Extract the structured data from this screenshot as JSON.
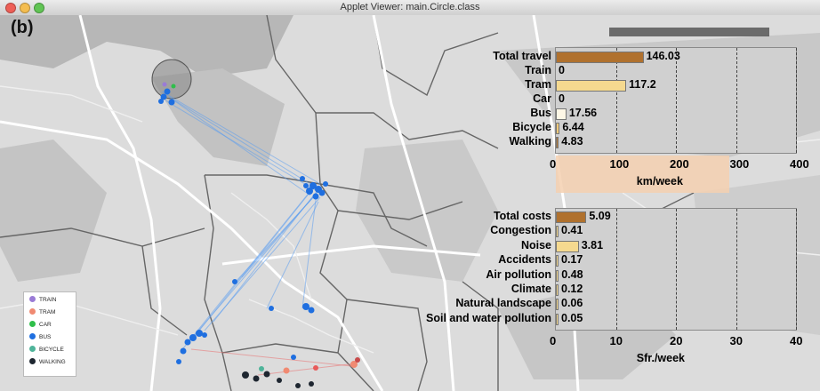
{
  "window": {
    "title": "Applet Viewer: main.Circle.class"
  },
  "panel_label": "(b)",
  "legend": [
    {
      "label": "TRAIN",
      "color": "#9a7bd6"
    },
    {
      "label": "TRAM",
      "color": "#f08a72"
    },
    {
      "label": "CAR",
      "color": "#2fbf4a"
    },
    {
      "label": "BUS",
      "color": "#1f6fe0"
    },
    {
      "label": "BICYCLE",
      "color": "#4fb49a"
    },
    {
      "label": "WALKING",
      "color": "#1e2630"
    }
  ],
  "chart_data": [
    {
      "type": "bar",
      "categories": [
        "Total travel",
        "Train",
        "Tram",
        "Car",
        "Bus",
        "Bicycle",
        "Walking"
      ],
      "values": [
        146.03,
        0,
        117.2,
        0,
        17.56,
        6.44,
        4.83
      ],
      "value_labels": [
        "146.03",
        "0",
        "117.2",
        "0",
        "17.56",
        "6.44",
        "4.83"
      ],
      "colors": [
        "#b0712e",
        "#f5d98f",
        "#f5d98f",
        "#f5d98f",
        "#fdf7e6",
        "#f0c97a",
        "#b07a3a"
      ],
      "xlim": [
        0,
        400
      ],
      "xticks": [
        "0",
        "100",
        "200",
        "300",
        "400"
      ],
      "xlabel": "km/week"
    },
    {
      "type": "bar",
      "categories": [
        "Total costs",
        "Congestion",
        "Noise",
        "Accidents",
        "Air pollution",
        "Climate",
        "Natural landscape",
        "Soil and water pollution"
      ],
      "values": [
        5.09,
        0.41,
        3.81,
        0.17,
        0.48,
        0.12,
        0.06,
        0.05
      ],
      "value_labels": [
        "5.09",
        "0.41",
        "3.81",
        "0.17",
        "0.48",
        "0.12",
        "0.06",
        "0.05"
      ],
      "colors": [
        "#b0712e",
        "#f5d98f",
        "#f5d98f",
        "#f5d98f",
        "#f5d98f",
        "#f5d98f",
        "#f5d98f",
        "#f5d98f"
      ],
      "xlim": [
        0,
        40
      ],
      "xticks": [
        "0",
        "10",
        "20",
        "30",
        "40"
      ],
      "xlabel": "Sfr./week"
    }
  ]
}
